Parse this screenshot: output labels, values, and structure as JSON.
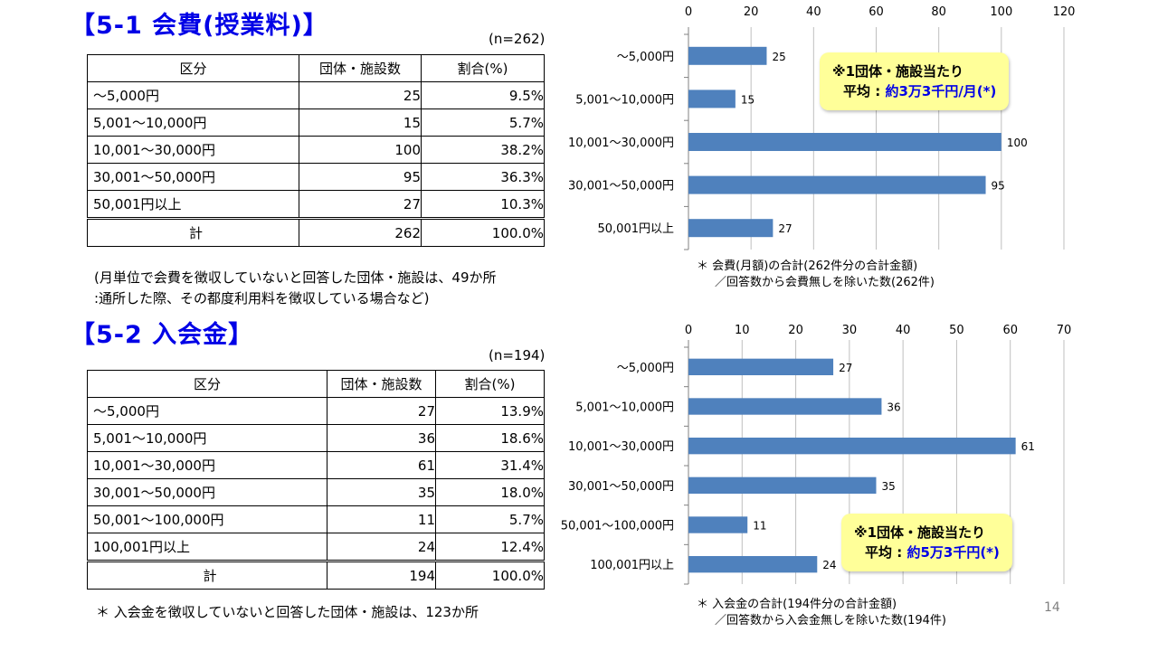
{
  "page_number": "14",
  "sections": [
    {
      "title": "【5-1  会費(授業料)】",
      "n_label": "(n=262)",
      "columns": [
        "区分",
        "団体・施設数",
        "割合(%)"
      ],
      "rows": [
        [
          "～5,000円",
          "25",
          "9.5%"
        ],
        [
          "5,001～10,000円",
          "15",
          "5.7%"
        ],
        [
          "10,001～30,000円",
          "100",
          "38.2%"
        ],
        [
          "30,001～50,000円",
          "95",
          "36.3%"
        ],
        [
          "50,001円以上",
          "27",
          "10.3%"
        ]
      ],
      "total": [
        "計",
        "262",
        "100.0%"
      ],
      "notes": [
        "(月単位で会費を徴収していないと回答した団体・施設は、49か所",
        ":通所した際、その都度利用料を徴収している場合など)"
      ],
      "callout": {
        "line1": "※1団体・施設当たり",
        "line2_prefix": "平均 : ",
        "line2_value": "約3万3千円/月(*)"
      },
      "chart_notes": [
        "＊ 会費(月額)の合計(262件分の合計金額)",
        "／回答数から会費無しを除いた数(262件)"
      ]
    },
    {
      "title": "【5-2  入会金】",
      "n_label": "(n=194)",
      "columns": [
        "区分",
        "団体・施設数",
        "割合(%)"
      ],
      "rows": [
        [
          "～5,000円",
          "27",
          "13.9%"
        ],
        [
          "5,001～10,000円",
          "36",
          "18.6%"
        ],
        [
          "10,001～30,000円",
          "61",
          "31.4%"
        ],
        [
          "30,001～50,000円",
          "35",
          "18.0%"
        ],
        [
          "50,001～100,000円",
          "11",
          "5.7%"
        ],
        [
          "100,001円以上",
          "24",
          "12.4%"
        ]
      ],
      "total": [
        "計",
        "194",
        "100.0%"
      ],
      "notes": [
        "＊ 入会金を徴収していないと回答した団体・施設は、123か所"
      ],
      "callout": {
        "line1": "※1団体・施設当たり",
        "line2_prefix": "平均 : ",
        "line2_value": "約5万3千円(*)"
      },
      "chart_notes": [
        "＊ 入会金の合計(194件分の合計金額)",
        "／回答数から入会金無しを除いた数(194件)"
      ]
    }
  ],
  "chart_data": [
    {
      "type": "bar",
      "orientation": "horizontal",
      "categories": [
        "～5,000円",
        "5,001～10,000円",
        "10,001～30,000円",
        "30,001～50,000円",
        "50,001円以上"
      ],
      "values": [
        25,
        15,
        100,
        95,
        27
      ],
      "xlim": [
        0,
        120
      ],
      "ticks": [
        0,
        20,
        40,
        60,
        80,
        100,
        120
      ],
      "bar_color": "#4f81bd",
      "grid": true
    },
    {
      "type": "bar",
      "orientation": "horizontal",
      "categories": [
        "～5,000円",
        "5,001～10,000円",
        "10,001～30,000円",
        "30,001～50,000円",
        "50,001～100,000円",
        "100,001円以上"
      ],
      "values": [
        27,
        36,
        61,
        35,
        11,
        24
      ],
      "xlim": [
        0,
        70
      ],
      "ticks": [
        0,
        10,
        20,
        30,
        40,
        50,
        60,
        70
      ],
      "bar_color": "#4f81bd",
      "grid": true
    }
  ]
}
